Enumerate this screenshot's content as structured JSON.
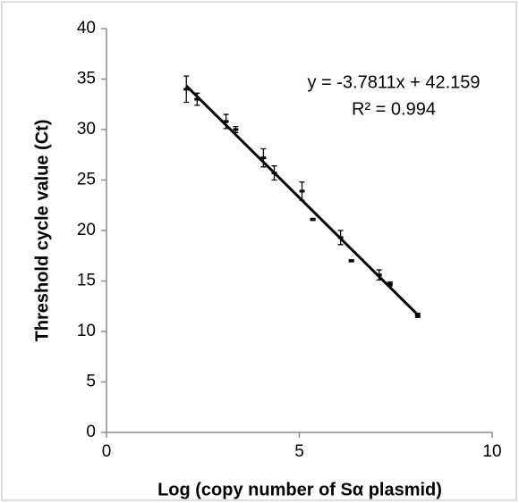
{
  "chart_data": {
    "type": "scatter",
    "x": [
      2.07,
      2.35,
      3.1,
      3.35,
      4.07,
      4.35,
      5.07,
      5.35,
      6.07,
      6.35,
      7.07,
      7.35,
      8.07
    ],
    "values": [
      34.0,
      33.0,
      30.8,
      30.0,
      27.2,
      25.7,
      23.9,
      21.1,
      19.3,
      17.0,
      15.6,
      14.7,
      11.6
    ],
    "errors": [
      1.3,
      0.6,
      0.7,
      0.3,
      0.9,
      0.7,
      0.9,
      0.1,
      0.7,
      0.1,
      0.5,
      0.2,
      0.2
    ],
    "color": "#000000",
    "trendline": {
      "x": [
        2.07,
        8.07
      ],
      "values": [
        34.33,
        11.65
      ]
    },
    "annotations": [
      "y = -3.7811x + 42.159",
      "R² = 0.994"
    ],
    "xlabel": "Log (copy number of Sα plasmid)",
    "ylabel": "Threshold cycle value (Ct)",
    "xlim": [
      0,
      10
    ],
    "xticks": [
      0,
      5,
      10
    ],
    "ylim": [
      0,
      40
    ],
    "yticks": [
      0,
      5,
      10,
      15,
      20,
      25,
      30,
      35,
      40
    ],
    "grid": false
  }
}
